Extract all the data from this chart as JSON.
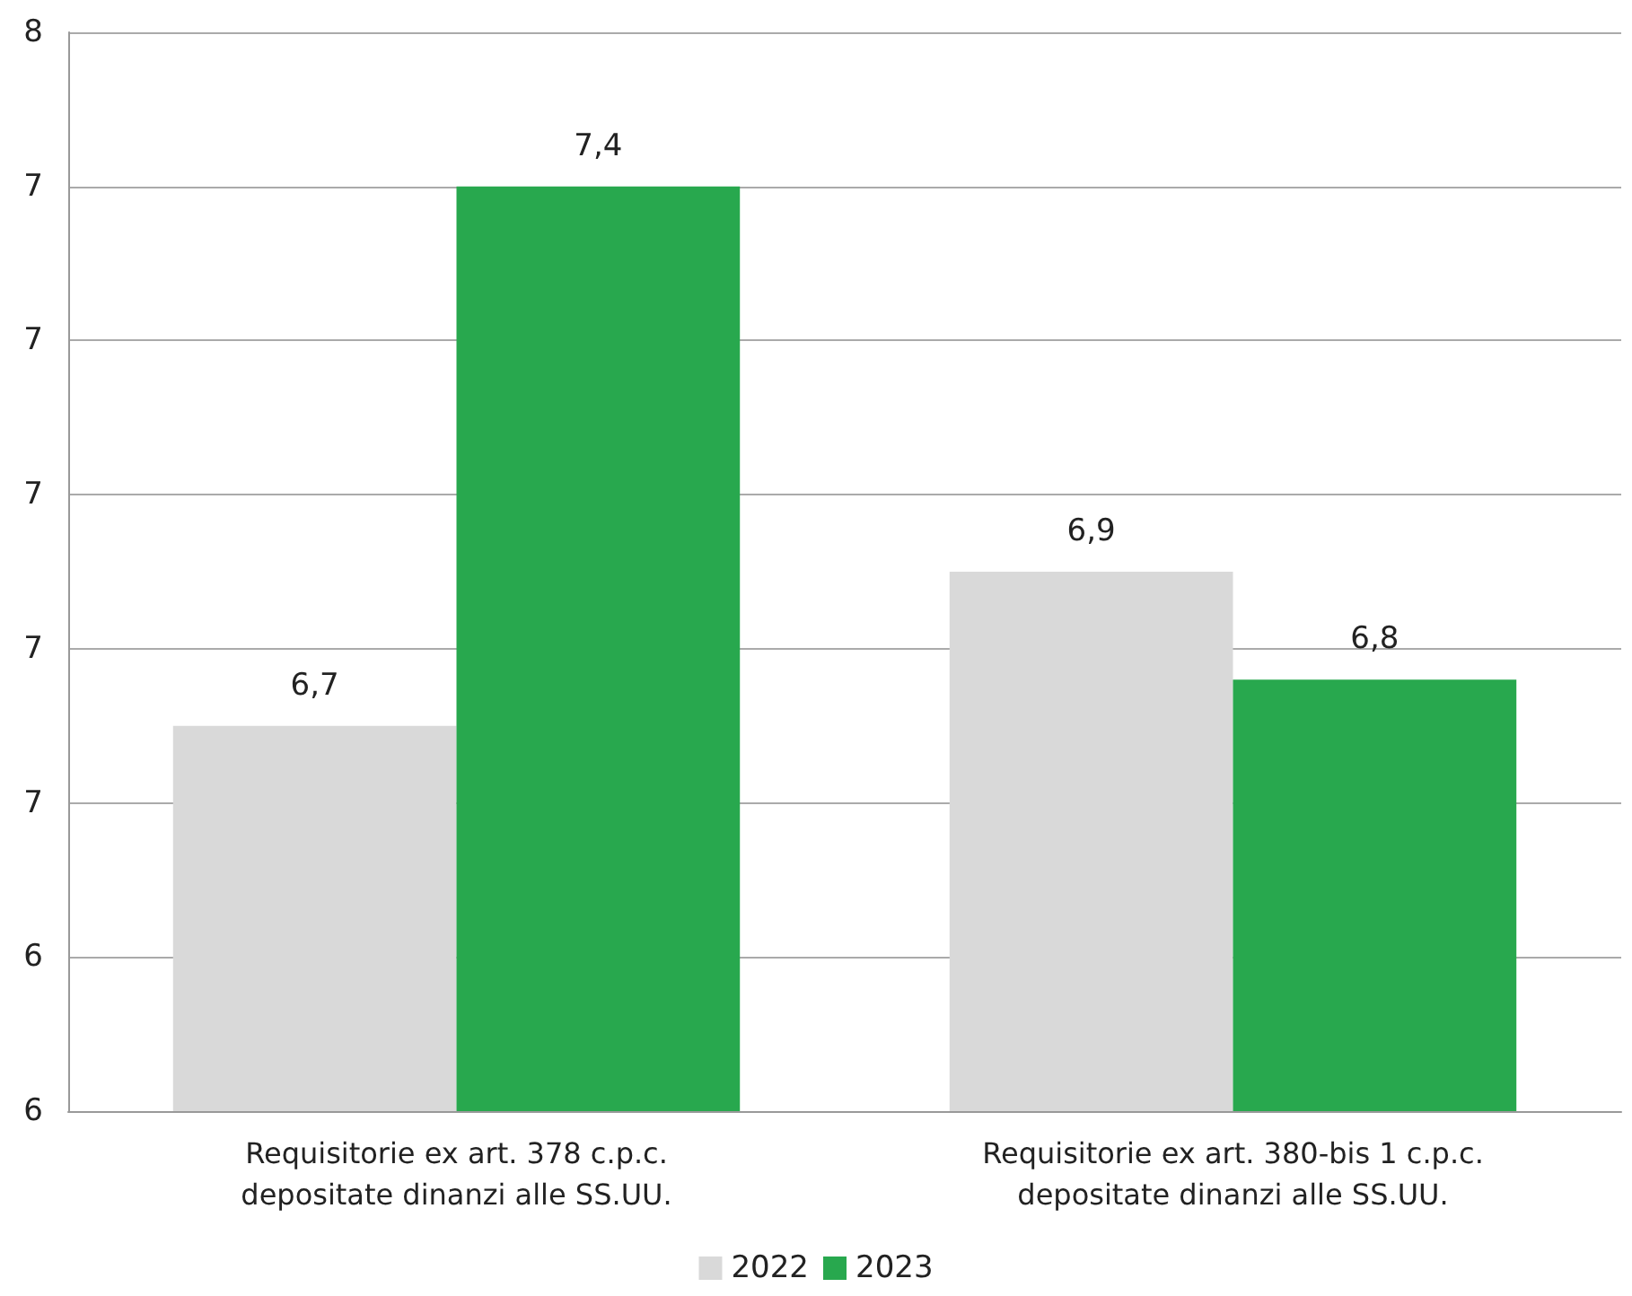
{
  "chart_data": {
    "type": "bar",
    "categories": [
      "Requisitorie ex art. 378 c.p.c.\ndepositate dinanzi alle SS.UU.",
      "Requisitorie ex art. 380-bis 1 c.p.c.\ndepositate dinanzi alle SS.UU."
    ],
    "series": [
      {
        "name": "2022",
        "color": "#d9d9d9",
        "values": [
          6.7,
          6.9
        ],
        "value_labels": [
          "6,7",
          "6,9"
        ]
      },
      {
        "name": "2023",
        "color": "#28a84e",
        "values": [
          7.4,
          6.76
        ],
        "value_labels": [
          "7,4",
          "6,8"
        ]
      }
    ],
    "ylim": [
      6.2,
      7.6
    ],
    "yticks": [
      {
        "value": 6.2,
        "label": "6"
      },
      {
        "value": 6.4,
        "label": "6"
      },
      {
        "value": 6.6,
        "label": "7"
      },
      {
        "value": 6.8,
        "label": "7"
      },
      {
        "value": 7.0,
        "label": "7"
      },
      {
        "value": 7.2,
        "label": "7"
      },
      {
        "value": 7.4,
        "label": "7"
      },
      {
        "value": 7.6,
        "label": "8"
      }
    ],
    "grid": "y",
    "legend": "bottom"
  }
}
